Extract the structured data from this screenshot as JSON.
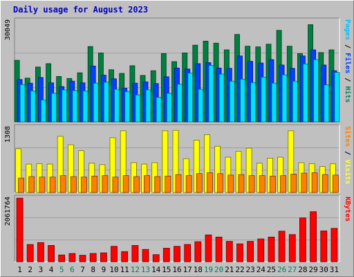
{
  "chart_data": {
    "type": "bar",
    "title": "Daily usage for August 2023",
    "days": [
      "1",
      "2",
      "3",
      "4",
      "5",
      "6",
      "7",
      "8",
      "9",
      "10",
      "11",
      "12",
      "13",
      "14",
      "15",
      "16",
      "17",
      "18",
      "19",
      "20",
      "21",
      "22",
      "23",
      "24",
      "25",
      "26",
      "27",
      "28",
      "29",
      "30",
      "31"
    ],
    "weekend_days": [
      "5",
      "6",
      "12",
      "13",
      "19",
      "20",
      "26",
      "27"
    ],
    "colors": {
      "hits": "#008040",
      "files": "#0040ff",
      "pages": "#00e0ff",
      "visits": "#ff8000",
      "sites": "#ffff00",
      "kbytes": "#ff0000",
      "weekday_label": "#000000",
      "weekend_label": "#00805c",
      "plot_bg": "#c0c0c0",
      "grid": "#a0a0a0"
    },
    "panels": [
      {
        "id": "hits-files-pages",
        "ymax_label": "30049",
        "ymax": 30049,
        "legend": [
          {
            "text": "Pages",
            "color": "#00c0ff"
          },
          {
            "text": " / ",
            "color": "#000000"
          },
          {
            "text": "Files",
            "color": "#0040ff"
          },
          {
            "text": " / ",
            "color": "#000000"
          },
          {
            "text": "Hits",
            "color": "#008060"
          }
        ],
        "series": [
          {
            "name": "Hits",
            "color": "#008040",
            "values": [
              18300,
              13000,
              16300,
              17300,
              13500,
              12900,
              14600,
              22400,
              20500,
              15500,
              14400,
              16700,
              13800,
              15200,
              20300,
              17900,
              20500,
              22800,
              24000,
              23400,
              21400,
              26000,
              22500,
              22300,
              23100,
              27200,
              22500,
              20300,
              28900,
              20600,
              21400
            ]
          },
          {
            "name": "Files",
            "color": "#0040ff",
            "values": [
              12600,
              11500,
              13200,
              11600,
              10500,
              12100,
              11600,
              16600,
              13900,
              12800,
              10000,
              11500,
              11900,
              11400,
              13400,
              16000,
              15700,
              17300,
              17600,
              16000,
              15900,
              19600,
              18000,
              17500,
              18500,
              16900,
              15900,
              19600,
              21400,
              16900,
              15200
            ]
          },
          {
            "name": "Pages",
            "color": "#00e0ff",
            "values": [
              11100,
              9200,
              6500,
              8500,
              9500,
              9300,
              9200,
              11500,
              11800,
              9700,
              9000,
              8000,
              9500,
              7300,
              8500,
              11200,
              14500,
              9700,
              16800,
              14200,
              12100,
              12700,
              11700,
              13300,
              11500,
              14000,
              12100,
              17200,
              18500,
              11000,
              14700
            ]
          }
        ]
      },
      {
        "id": "visits-sites",
        "ymax_label": "1308",
        "ymax": 1308,
        "legend": [
          {
            "text": "Sites",
            "color": "#ff8000"
          },
          {
            "text": " / ",
            "color": "#000000"
          },
          {
            "text": "Visits",
            "color": "#ffff40"
          }
        ],
        "series": [
          {
            "name": "Visits",
            "color": "#ffff00",
            "values": [
              880,
              570,
              580,
              570,
              1130,
              960,
              840,
              590,
              560,
              1100,
              1240,
              600,
              570,
              600,
              1240,
              1250,
              680,
              1050,
              1160,
              930,
              710,
              830,
              890,
              590,
              690,
              710,
              1240,
              600,
              580,
              520,
              580
            ]
          },
          {
            "name": "Sites",
            "color": "#ff8000",
            "values": [
              290,
              320,
              310,
              310,
              340,
              320,
              310,
              330,
              340,
              310,
              340,
              320,
              340,
              320,
              330,
              360,
              340,
              380,
              400,
              380,
              350,
              360,
              340,
              340,
              330,
              340,
              370,
              390,
              400,
              360,
              350
            ]
          }
        ]
      },
      {
        "id": "kbytes",
        "ymax_label": "2061764",
        "ymax": 2061764,
        "legend": [
          {
            "text": "KBytes",
            "color": "#ff0000"
          }
        ],
        "series": [
          {
            "name": "KBytes",
            "color": "#ff0000",
            "values": [
              2060000,
              560000,
              620000,
              530000,
              220000,
              270000,
              210000,
              270000,
              290000,
              500000,
              330000,
              530000,
              400000,
              230000,
              440000,
              500000,
              560000,
              650000,
              870000,
              800000,
              660000,
              580000,
              660000,
              740000,
              800000,
              990000,
              880000,
              1420000,
              1620000,
              1000000,
              1080000
            ]
          }
        ]
      }
    ]
  }
}
